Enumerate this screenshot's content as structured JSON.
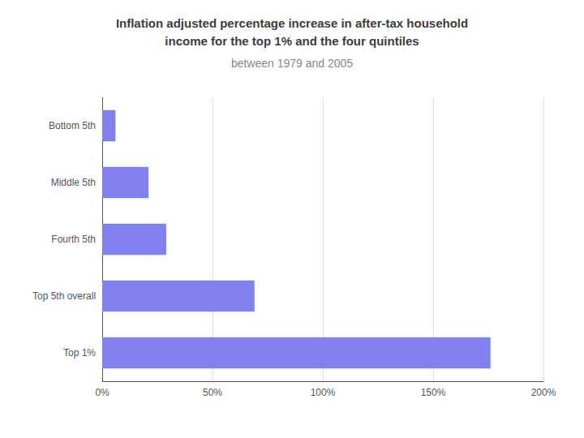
{
  "chart_data": {
    "type": "bar",
    "orientation": "horizontal",
    "title": "Inflation adjusted percentage increase in after-tax household\nincome for the top 1% and the four quintiles",
    "subtitle": "between 1979 and 2005",
    "categories": [
      "Top 1%",
      "Top 5th overall",
      "Fourth 5th",
      "Middle 5th",
      "Bottom 5th"
    ],
    "values": [
      176,
      69,
      29,
      21,
      6
    ],
    "color": "#8080ee",
    "xlim": [
      0,
      200
    ],
    "xticks": [
      {
        "value": 0,
        "label": "0%"
      },
      {
        "value": 50,
        "label": "50%"
      },
      {
        "value": 100,
        "label": "100%"
      },
      {
        "value": 150,
        "label": "150%"
      },
      {
        "value": 200,
        "label": "200%"
      }
    ],
    "grid": true
  }
}
